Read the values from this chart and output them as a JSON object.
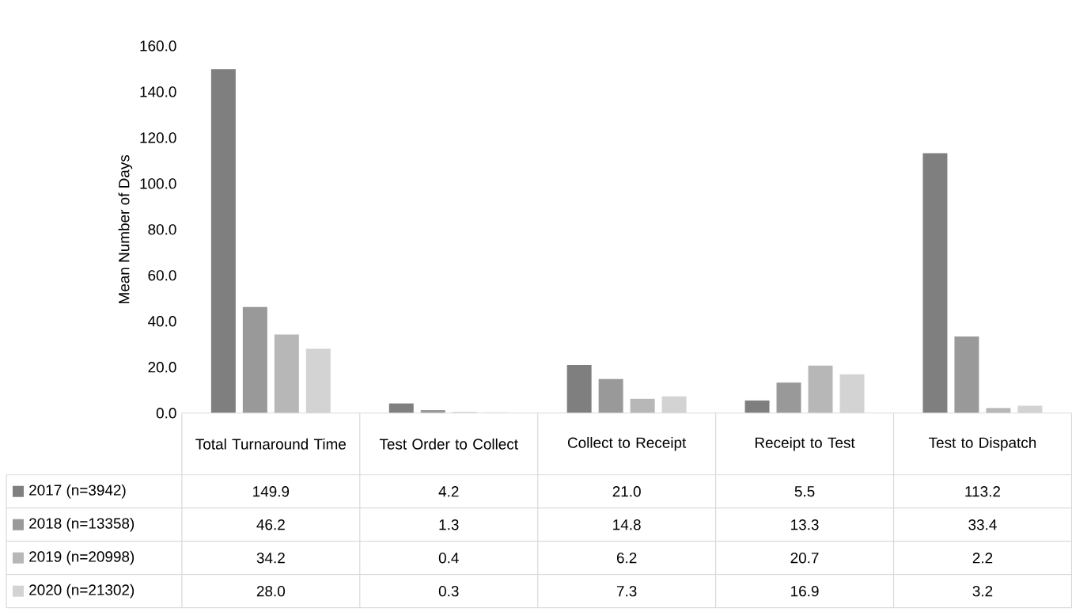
{
  "chart_data": {
    "type": "bar",
    "ylabel": "Mean Number of Days",
    "categories": [
      "Total Turnaround Time",
      "Test Order to Collect",
      "Collect to Receipt",
      "Receipt to Test",
      "Test to Dispatch"
    ],
    "series": [
      {
        "name": "2017 (n=3942)",
        "color": "#7f7f7f",
        "values": [
          149.9,
          4.2,
          21.0,
          5.5,
          113.2
        ],
        "value_labels": [
          "149.9",
          "4.2",
          "21.0",
          "5.5",
          "113.2"
        ]
      },
      {
        "name": "2018 (n=13358)",
        "color": "#999999",
        "values": [
          46.2,
          1.3,
          14.8,
          13.3,
          33.4
        ],
        "value_labels": [
          "46.2",
          "1.3",
          "14.8",
          "13.3",
          "33.4"
        ]
      },
      {
        "name": "2019 (n=20998)",
        "color": "#b7b7b7",
        "values": [
          34.2,
          0.4,
          6.2,
          20.7,
          2.2
        ],
        "value_labels": [
          "34.2",
          "0.4",
          "6.2",
          "20.7",
          "2.2"
        ]
      },
      {
        "name": "2020 (n=21302)",
        "color": "#d3d3d3",
        "values": [
          28.0,
          0.3,
          7.3,
          16.9,
          3.2
        ],
        "value_labels": [
          "28.0",
          "0.3",
          "7.3",
          "16.9",
          "3.2"
        ]
      }
    ],
    "ylim": [
      0,
      160
    ],
    "yticks": [
      {
        "value": 0,
        "label": "0.0"
      },
      {
        "value": 20,
        "label": "20.0"
      },
      {
        "value": 40,
        "label": "40.0"
      },
      {
        "value": 60,
        "label": "60.0"
      },
      {
        "value": 80,
        "label": "80.0"
      },
      {
        "value": 100,
        "label": "100.0"
      },
      {
        "value": 120,
        "label": "120.0"
      },
      {
        "value": 140,
        "label": "140.0"
      },
      {
        "value": 160,
        "label": "160.0"
      }
    ],
    "legend": "bottom",
    "grid": false
  }
}
